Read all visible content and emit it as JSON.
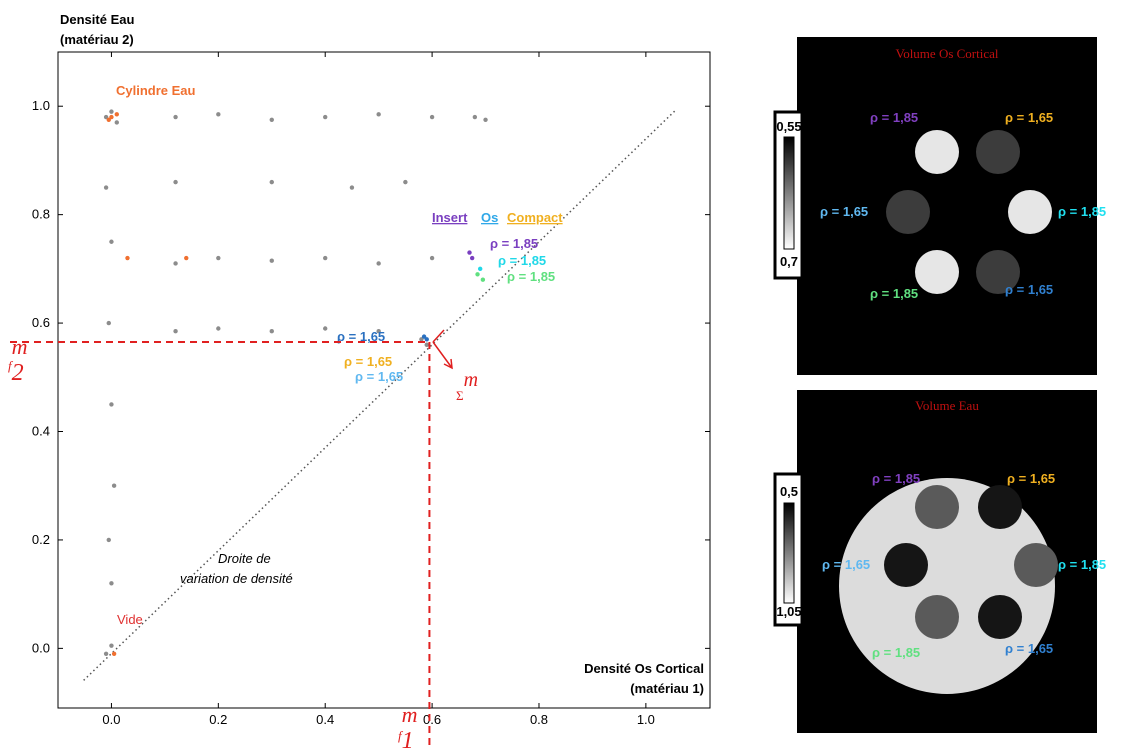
{
  "chart_data": {
    "type": "scatter",
    "y_label": [
      "Densité Eau",
      "(matériau 2)"
    ],
    "x_label": [
      "Densité Os Cortical",
      "(matériau 1)"
    ],
    "xlim": [
      -0.1,
      1.12
    ],
    "ylim": [
      -0.11,
      1.1
    ],
    "xticks": [
      {
        "value": 0,
        "label": "0.0"
      },
      0.2,
      0.4,
      0.6,
      0.8,
      {
        "value": 1,
        "label": "1.0"
      }
    ],
    "yticks": [
      {
        "value": 0,
        "label": "0.0"
      },
      0.2,
      0.4,
      0.6,
      0.8,
      {
        "value": 1,
        "label": "1.0"
      }
    ],
    "series": [
      {
        "color": "#8c8c8c",
        "x": [
          -0.01,
          0.0,
          -0.005,
          0.0,
          0.005,
          -0.005,
          0.0,
          0.12,
          0.2,
          0.3,
          0.4,
          0.5,
          0.6,
          0.7,
          0.12,
          0.2,
          0.3,
          0.4,
          0.5,
          0.6,
          0.12,
          0.2,
          0.3,
          0.4,
          0.5,
          -0.01,
          0.01,
          0.0,
          0.12,
          0.3,
          0.45,
          0.55,
          -0.01,
          0.0,
          0.58,
          0.59,
          0.68
        ],
        "y": [
          0.85,
          0.75,
          0.6,
          0.45,
          0.3,
          0.2,
          0.12,
          0.98,
          0.985,
          0.975,
          0.98,
          0.985,
          0.98,
          0.975,
          0.71,
          0.72,
          0.715,
          0.72,
          0.71,
          0.72,
          0.585,
          0.59,
          0.585,
          0.59,
          0.585,
          0.98,
          0.97,
          0.99,
          0.86,
          0.86,
          0.85,
          0.86,
          -0.01,
          0.005,
          0.57,
          0.56,
          0.98
        ]
      },
      {
        "color": "#f07030",
        "x": [
          0.0,
          -0.005,
          0.01,
          0.005,
          0.03,
          0.14
        ],
        "y": [
          0.98,
          0.975,
          0.985,
          -0.01,
          0.72,
          0.72
        ]
      },
      {
        "color": "#7a3fc0",
        "x": [
          0.67,
          0.675
        ],
        "y": [
          0.73,
          0.72
        ]
      },
      {
        "color": "#20d8e8",
        "x": [
          0.69
        ],
        "y": [
          0.7
        ]
      },
      {
        "color": "#60e080",
        "x": [
          0.695,
          0.685
        ],
        "y": [
          0.68,
          0.69
        ]
      },
      {
        "color": "#2a70c0",
        "x": [
          0.59,
          0.585
        ],
        "y": [
          0.57,
          0.575
        ]
      }
    ],
    "diagonal": {
      "x": [
        -0.052,
        1.056
      ],
      "y": [
        -0.059,
        0.993
      ]
    },
    "guide_x": 0.595,
    "guide_y": 0.565,
    "annotations": {
      "cylinder": "Cylindre Eau",
      "vide": "Vide",
      "droite": [
        "Droite de",
        "variation de densité"
      ],
      "insert": [
        "Insert",
        "Os",
        "Compact"
      ],
      "rho": [
        "ρ = 1,85",
        "ρ = 1,85",
        "ρ = 1,85",
        "ρ = 1,65",
        "ρ = 1,65",
        "ρ = 1,65"
      ],
      "f2": {
        "base": "f",
        "sub": "2",
        "sup": "m"
      },
      "f1": {
        "base": "f",
        "sub": "1",
        "sup": "m"
      },
      "sigma": {
        "base": "Σ",
        "sup": "m"
      }
    }
  },
  "panels": [
    {
      "title": "Volume Os Cortical",
      "colorbar": [
        "0,55",
        "0,7"
      ],
      "labels": [
        "ρ = 1,85",
        "ρ = 1,65",
        "ρ = 1,65",
        "ρ = 1,85",
        "ρ = 1,85",
        "ρ = 1,65"
      ]
    },
    {
      "title": "Volume Eau",
      "colorbar": [
        "0,5",
        "1,05"
      ],
      "labels": [
        "ρ = 1,85",
        "ρ = 1,65",
        "ρ = 1,65",
        "ρ = 1,85",
        "ρ = 1,85",
        "ρ = 1,65"
      ]
    }
  ]
}
